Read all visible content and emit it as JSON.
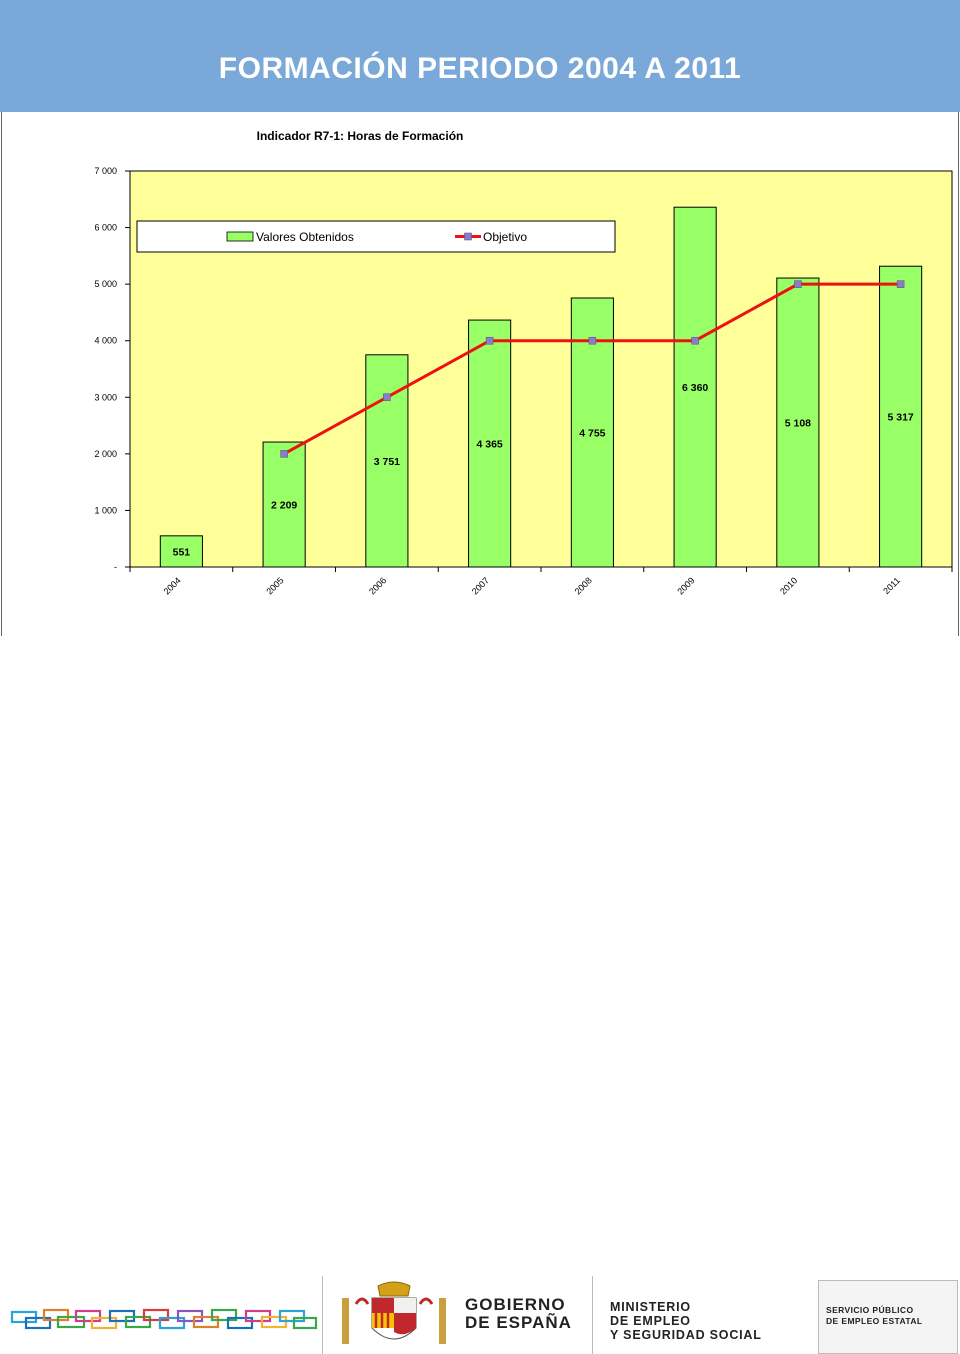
{
  "header": {
    "title": "FORMACIÓN PERIODO 2004 A 2011"
  },
  "footer": {
    "gobierno": [
      "GOBIERNO",
      "DE ESPAÑA"
    ],
    "ministerio": [
      "MINISTERIO",
      "DE EMPLEO",
      "Y SEGURIDAD SOCIAL"
    ],
    "servicio": [
      "SERVICIO PÚBLICO",
      "DE EMPLEO ESTATAL"
    ]
  },
  "colors": {
    "header_bg": "#7aa8d8",
    "plot_bg": "#ffff99",
    "bar_fill": "#99ff66",
    "line": "#ee1111",
    "marker": "#8a7bd0"
  },
  "chart_data": {
    "type": "bar",
    "title": "Indicador R7-1: Horas de Formación",
    "categories": [
      "2004",
      "2005",
      "2006",
      "2007",
      "2008",
      "2009",
      "2010",
      "2011"
    ],
    "series": [
      {
        "name": "Valores Obtenidos",
        "type": "bar",
        "values": [
          551,
          2209,
          3751,
          4365,
          4755,
          6360,
          5108,
          5317
        ],
        "labels": [
          "551",
          "2 209",
          "3 751",
          "4 365",
          "4 755",
          "6 360",
          "5 108",
          "5 317"
        ]
      },
      {
        "name": "Objetivo",
        "type": "line",
        "values": [
          null,
          2000,
          3000,
          4000,
          4000,
          4000,
          5000,
          5000
        ]
      }
    ],
    "ylim": [
      0,
      7000
    ],
    "yticks": [
      0,
      1000,
      2000,
      3000,
      4000,
      5000,
      6000,
      7000
    ],
    "ytick_labels": [
      "-",
      "1 000",
      "2 000",
      "3 000",
      "4 000",
      "5 000",
      "6 000",
      "7 000"
    ],
    "legend": "top"
  }
}
